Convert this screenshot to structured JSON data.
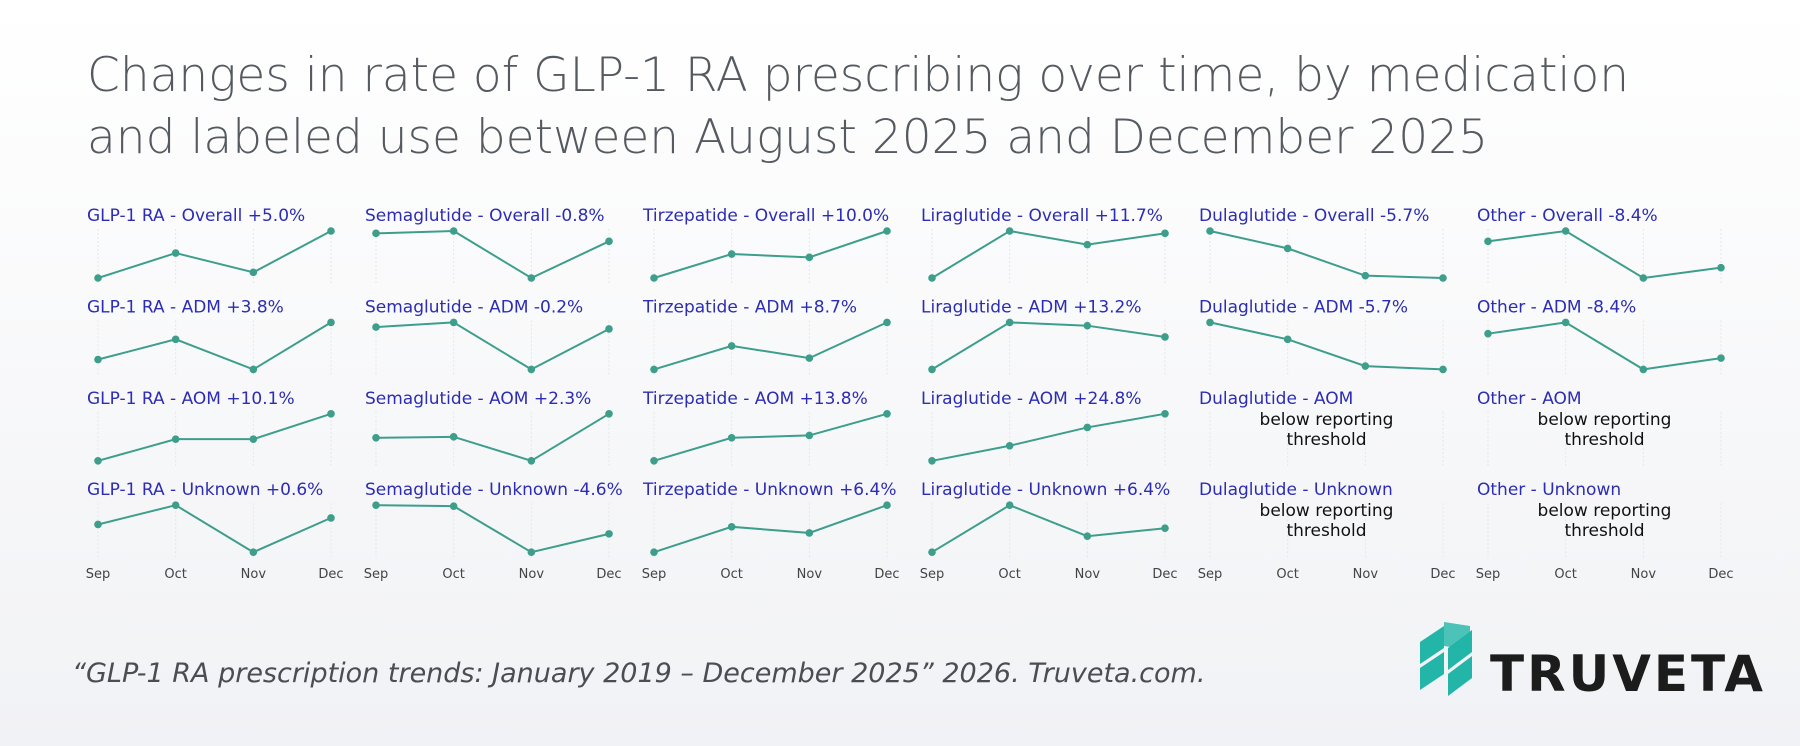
{
  "title": [
    "Changes in rate of GLP-1 RA prescribing over time, by medication",
    "and labeled use between August 2025 and December 2025"
  ],
  "source": "“GLP-1 RA prescription trends: January 2019 – December 2025” 2026. Truveta.com.",
  "logo": "TRUVETA",
  "chart_data": {
    "type": "line",
    "color": "#3d9e8c",
    "categories": [
      "Sep",
      "Oct",
      "Nov",
      "Dec"
    ],
    "ylim": [
      0,
      1
    ],
    "columns": 6,
    "panels": [
      {
        "title": "GLP-1 RA - Overall +5.0%",
        "values": [
          0,
          0.53,
          0.12,
          1
        ]
      },
      {
        "title": "Semaglutide - Overall -0.8%",
        "values": [
          0.95,
          1,
          0,
          0.78
        ]
      },
      {
        "title": "Tirzepatide - Overall +10.0%",
        "values": [
          0,
          0.51,
          0.44,
          1
        ]
      },
      {
        "title": "Liraglutide - Overall +11.7%",
        "values": [
          0,
          1,
          0.71,
          0.95
        ]
      },
      {
        "title": "Dulaglutide - Overall -5.7%",
        "values": [
          1,
          0.63,
          0.05,
          0
        ]
      },
      {
        "title": "Other - Overall -8.4%",
        "values": [
          0.78,
          1,
          0,
          0.22
        ]
      },
      {
        "title": "GLP-1 RA - ADM +3.8%",
        "values": [
          0.21,
          0.64,
          0,
          1
        ]
      },
      {
        "title": "Semaglutide - ADM -0.2%",
        "values": [
          0.9,
          1,
          0,
          0.86
        ]
      },
      {
        "title": "Tirzepatide - ADM +8.7%",
        "values": [
          0,
          0.5,
          0.24,
          1
        ]
      },
      {
        "title": "Liraglutide - ADM +13.2%",
        "values": [
          0,
          1,
          0.93,
          0.69
        ]
      },
      {
        "title": "Dulaglutide - ADM -5.7%",
        "values": [
          1,
          0.64,
          0.07,
          0
        ]
      },
      {
        "title": "Other - ADM -8.4%",
        "values": [
          0.76,
          1,
          0,
          0.24
        ]
      },
      {
        "title": "GLP-1 RA - AOM +10.1%",
        "values": [
          0,
          0.46,
          0.46,
          1
        ]
      },
      {
        "title": "Semaglutide - AOM +2.3%",
        "values": [
          0.49,
          0.51,
          0,
          1
        ]
      },
      {
        "title": "Tirzepatide - AOM +13.8%",
        "values": [
          0,
          0.49,
          0.54,
          1
        ]
      },
      {
        "title": "Liraglutide - AOM +24.8%",
        "values": [
          0,
          0.32,
          0.71,
          1
        ]
      },
      {
        "title": "Dulaglutide - AOM",
        "note": "below reporting threshold"
      },
      {
        "title": "Other - AOM",
        "note": "below reporting threshold"
      },
      {
        "title": "GLP-1 RA - Unknown +0.6%",
        "values": [
          0.59,
          1,
          0,
          0.73
        ]
      },
      {
        "title": "Semaglutide - Unknown -4.6%",
        "values": [
          1,
          0.98,
          0,
          0.39
        ]
      },
      {
        "title": "Tirzepatide - Unknown +6.4%",
        "values": [
          0,
          0.54,
          0.41,
          1
        ]
      },
      {
        "title": "Liraglutide - Unknown +6.4%",
        "values": [
          0,
          1,
          0.34,
          0.51
        ]
      },
      {
        "title": "Dulaglutide - Unknown",
        "note": "below reporting threshold"
      },
      {
        "title": "Other - Unknown",
        "note": "below reporting threshold"
      }
    ]
  }
}
